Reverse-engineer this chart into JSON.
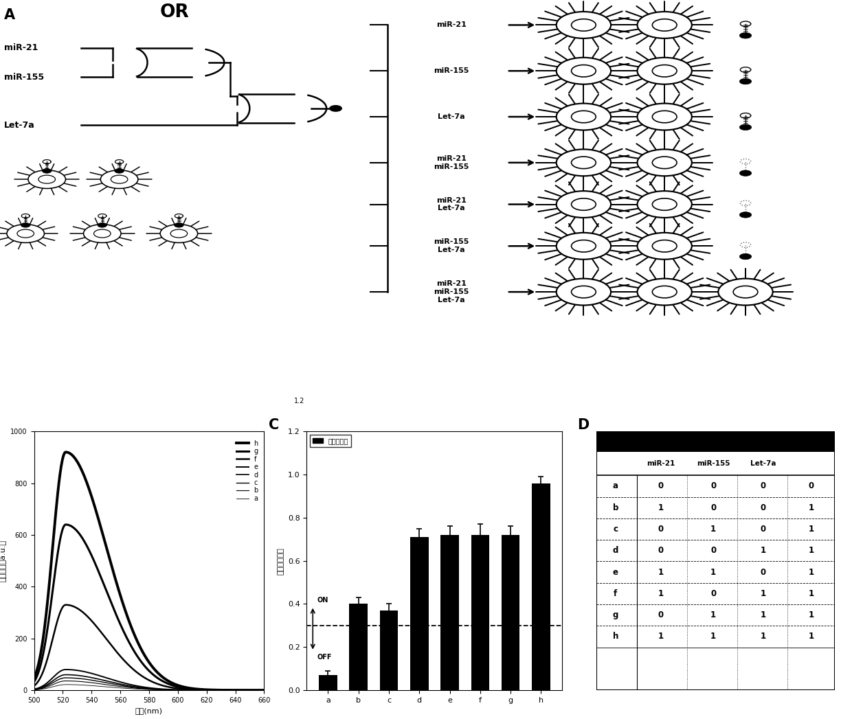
{
  "panel_B": {
    "xlabel": "波长(nm)",
    "ylabel": "荧光强度（a.u.）",
    "xlim": [
      500,
      660
    ],
    "ylim": [
      0,
      1000
    ],
    "xticks": [
      500,
      520,
      540,
      560,
      580,
      600,
      620,
      640,
      660
    ],
    "yticks": [
      0,
      200,
      400,
      600,
      800,
      1000
    ],
    "legend_labels": [
      "a",
      "b",
      "c",
      "d",
      "e",
      "f",
      "g",
      "h"
    ],
    "curves": [
      {
        "label": "h",
        "peak": 920,
        "lw": 2.8
      },
      {
        "label": "g",
        "peak": 640,
        "lw": 2.2
      },
      {
        "label": "f",
        "peak": 330,
        "lw": 1.8
      },
      {
        "label": "e",
        "peak": 80,
        "lw": 1.4
      },
      {
        "label": "d",
        "peak": 60,
        "lw": 1.2
      },
      {
        "label": "c",
        "peak": 48,
        "lw": 1.0
      },
      {
        "label": "b",
        "peak": 36,
        "lw": 0.8
      },
      {
        "label": "a",
        "peak": 22,
        "lw": 0.6
      }
    ]
  },
  "panel_C": {
    "categories": [
      "a",
      "b",
      "c",
      "d",
      "e",
      "f",
      "g",
      "h"
    ],
    "values": [
      0.07,
      0.4,
      0.37,
      0.71,
      0.72,
      0.72,
      0.72,
      0.96
    ],
    "errors": [
      0.02,
      0.03,
      0.03,
      0.04,
      0.04,
      0.05,
      0.04,
      0.03
    ],
    "ylabel": "相对荧光强度",
    "ylim": [
      0.0,
      1.2
    ],
    "yticks": [
      0.0,
      0.2,
      0.4,
      0.6,
      0.8,
      1.0,
      1.2
    ],
    "threshold": 0.3,
    "legend_label": "磁球荧光质",
    "on_label": "ON",
    "off_label": "OFF"
  },
  "panel_D": {
    "rows": [
      [
        "a",
        "0",
        "0",
        "0",
        "0"
      ],
      [
        "b",
        "1",
        "0",
        "0",
        "1"
      ],
      [
        "c",
        "0",
        "1",
        "0",
        "1"
      ],
      [
        "d",
        "0",
        "0",
        "1",
        "1"
      ],
      [
        "e",
        "1",
        "1",
        "0",
        "1"
      ],
      [
        "f",
        "1",
        "0",
        "1",
        "1"
      ],
      [
        "g",
        "0",
        "1",
        "1",
        "1"
      ],
      [
        "h",
        "1",
        "1",
        "1",
        "1"
      ]
    ]
  }
}
